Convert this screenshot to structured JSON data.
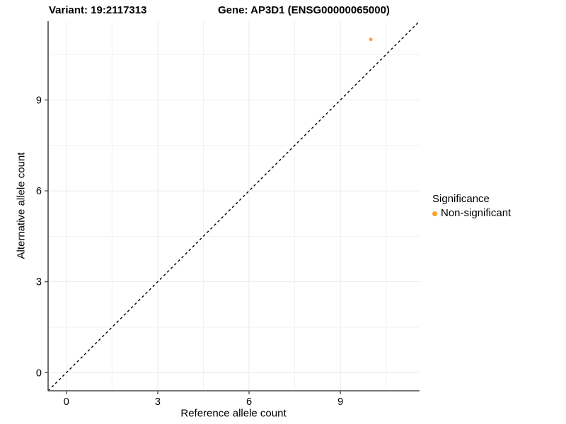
{
  "chart_data": {
    "type": "scatter",
    "titles": {
      "variant": "Variant: 19:2117313",
      "gene": "Gene: AP3D1 (ENSG00000065000)"
    },
    "xlabel": "Reference allele count",
    "ylabel": "Alternative allele count",
    "xlim": [
      -0.6,
      11.6
    ],
    "ylim": [
      -0.6,
      11.6
    ],
    "xticks": [
      0,
      3,
      6,
      9
    ],
    "yticks": [
      0,
      3,
      6,
      9
    ],
    "minor_ticks": [
      1.5,
      4.5,
      7.5,
      10.5
    ],
    "grid": true,
    "identity_line": {
      "style": "dashed",
      "slope": 1,
      "intercept": 0
    },
    "series": [
      {
        "name": "Non-significant",
        "color": "#F8A030",
        "points": [
          {
            "x": 10,
            "y": 11
          }
        ]
      }
    ],
    "legend": {
      "title": "Significance",
      "position": "right",
      "items": [
        {
          "label": "Non-significant",
          "color": "#F8A030"
        }
      ]
    }
  },
  "colors": {
    "background": "#ffffff",
    "axis_line": "#4a4a4a",
    "grid_major": "#ebebeb",
    "grid_minor": "#f1f1f1",
    "text": "#000000",
    "identity_line": "#000000"
  }
}
